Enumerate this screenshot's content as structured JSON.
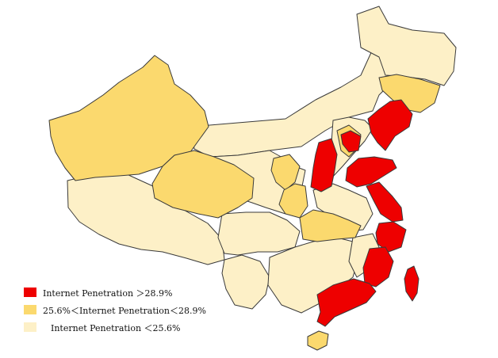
{
  "colors": {
    "high": "#ee0000",
    "mid": "#fbd96e",
    "low": "#fdf0c7",
    "border": "#3a3a3a"
  },
  "legend": {
    "items": [
      {
        "level": "high",
        "label": "Internet Penetration ＞28.9%"
      },
      {
        "level": "mid",
        "label": "25.6%＜Internet Penetration＜28.9%"
      },
      {
        "level": "low",
        "label": "Internet Penetration ＜25.6%"
      }
    ]
  }
}
